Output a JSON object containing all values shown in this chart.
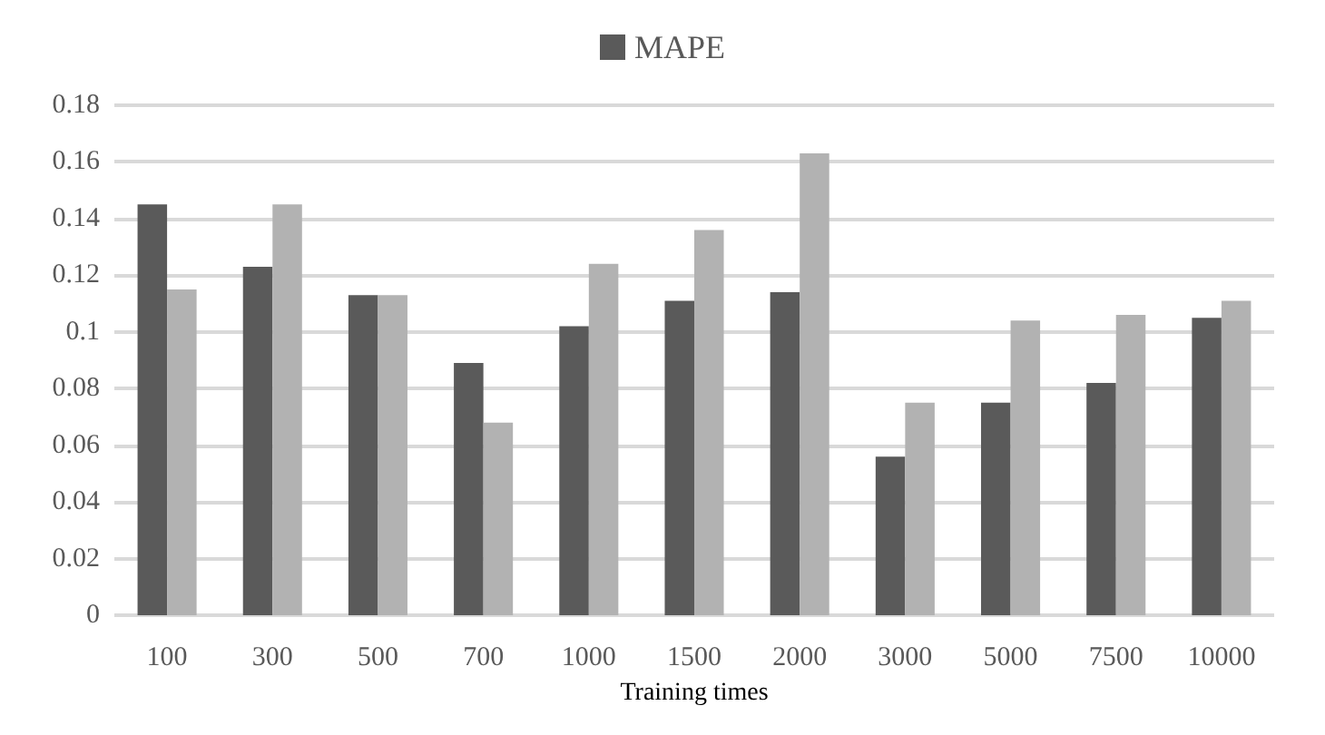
{
  "chart_data": {
    "type": "bar",
    "xlabel": "Training times",
    "categories": [
      "100",
      "300",
      "500",
      "700",
      "1000",
      "1500",
      "2000",
      "3000",
      "5000",
      "7500",
      "10000"
    ],
    "series": [
      {
        "name": "MAPE",
        "color": "#5a5a5a",
        "values": [
          0.145,
          0.123,
          0.113,
          0.089,
          0.102,
          0.111,
          0.114,
          0.056,
          0.075,
          0.082,
          0.105
        ]
      },
      {
        "color": "#b2b2b2",
        "values": [
          0.115,
          0.145,
          0.113,
          0.068,
          0.124,
          0.136,
          0.163,
          0.075,
          0.104,
          0.106,
          0.111
        ]
      }
    ],
    "ylim": [
      0,
      0.18
    ],
    "yticks": [
      0,
      0.02,
      0.04,
      0.06,
      0.08,
      0.1,
      0.12,
      0.14,
      0.16,
      0.18
    ],
    "grid": "y",
    "legend": "top"
  }
}
